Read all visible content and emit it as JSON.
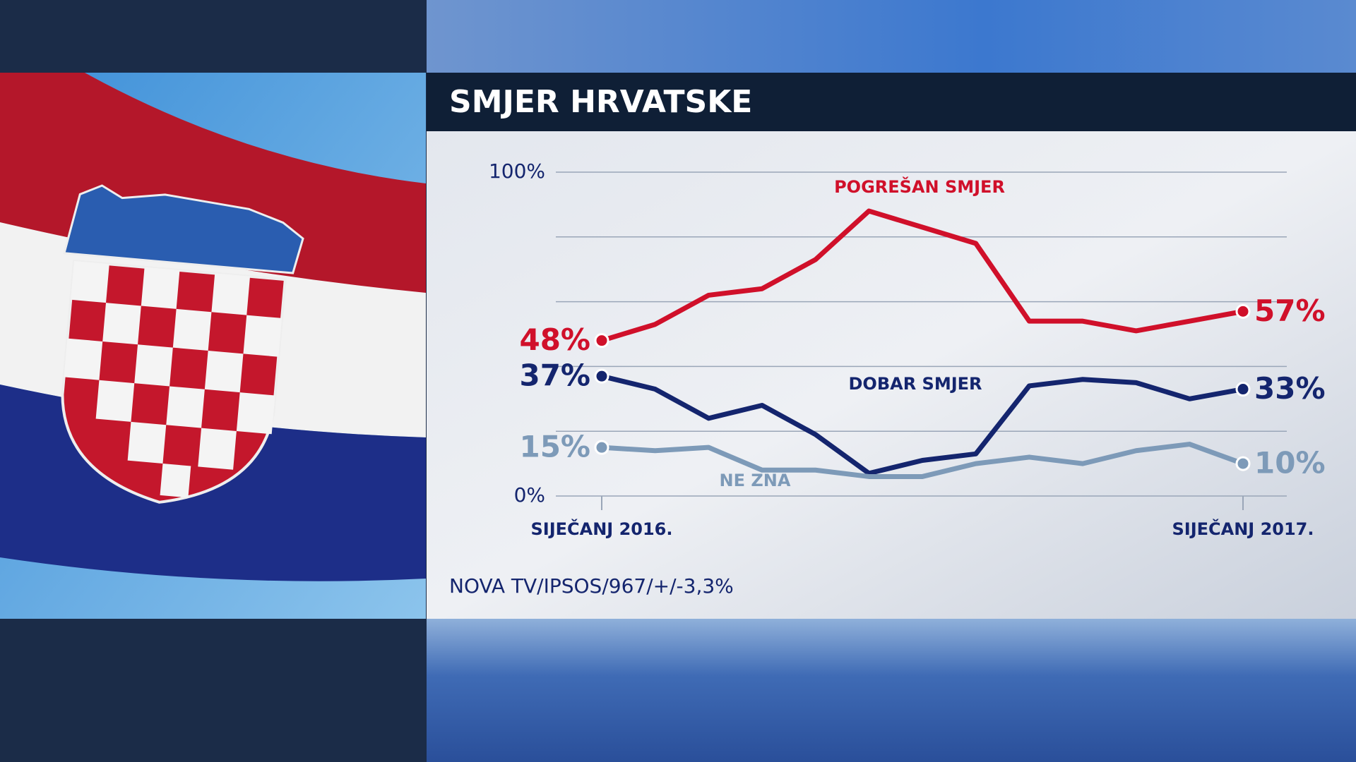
{
  "chart_data": {
    "type": "line",
    "title": "SMJER HRVATSKE",
    "source": "NOVA TV/IPSOS/967/+/-3,3%",
    "categories": [
      "SIJEČANJ 2016.",
      null,
      null,
      null,
      null,
      null,
      null,
      null,
      null,
      null,
      null,
      null,
      "SIJEČANJ 2017."
    ],
    "series": [
      {
        "name": "POGREŠAN SMJER",
        "color": "#d0102a",
        "values": [
          48,
          53,
          62,
          64,
          73,
          88,
          83,
          78,
          54,
          54,
          51,
          54,
          57
        ],
        "value_labels": [
          "48%",
          null,
          null,
          null,
          null,
          null,
          null,
          null,
          null,
          null,
          null,
          null,
          "57%"
        ]
      },
      {
        "name": "DOBAR SMJER",
        "color": "#14256e",
        "values": [
          37,
          33,
          24,
          28,
          19,
          7,
          11,
          13,
          34,
          36,
          35,
          30,
          33
        ],
        "value_labels": [
          "37%",
          null,
          null,
          null,
          null,
          null,
          null,
          null,
          null,
          null,
          null,
          null,
          "33%"
        ]
      },
      {
        "name": "NE ZNA",
        "color": "#7d9ab8",
        "values": [
          15,
          14,
          15,
          8,
          8,
          6,
          6,
          10,
          12,
          10,
          14,
          16,
          10
        ],
        "value_labels": [
          "15%",
          null,
          null,
          null,
          null,
          null,
          null,
          null,
          null,
          null,
          null,
          null,
          "10%"
        ]
      }
    ],
    "ylim": [
      0,
      100
    ],
    "yticks": [
      {
        "value": 0,
        "label": "0%"
      },
      {
        "value": 20,
        "label": null
      },
      {
        "value": 40,
        "label": null
      },
      {
        "value": 60,
        "label": null
      },
      {
        "value": 80,
        "label": null
      },
      {
        "value": 100,
        "label": "100%"
      }
    ],
    "grid": true
  }
}
